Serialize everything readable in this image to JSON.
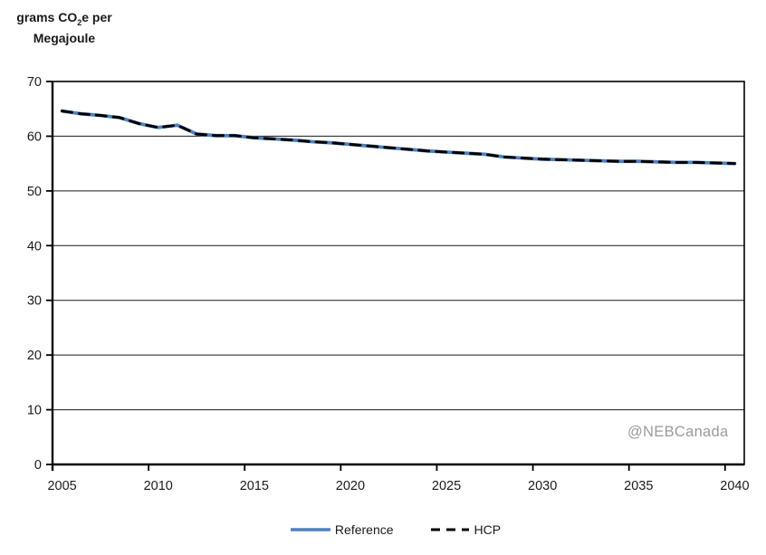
{
  "axis_title": {
    "pre": "grams CO",
    "sub": "2",
    "post": "e per",
    "line2": "Megajoule"
  },
  "watermark": "@NEBCanada",
  "legend": {
    "items": [
      {
        "label": "Reference"
      },
      {
        "label": "HCP"
      }
    ]
  },
  "chart_data": {
    "type": "line",
    "title": "",
    "ylabel": "grams CO2e per Megajoule",
    "xlabel": "",
    "ylim": [
      0,
      70
    ],
    "y_ticks": [
      0,
      10,
      20,
      30,
      40,
      50,
      60,
      70
    ],
    "x_tick_labels": [
      2005,
      2010,
      2015,
      2020,
      2025,
      2030,
      2035,
      2040
    ],
    "grid": "horizontal",
    "legend_position": "bottom",
    "annotations": [
      {
        "text": "@NEBCanada",
        "color": "#9b9b9b",
        "position": "bottom-right-inside-plot"
      }
    ],
    "x": [
      2005,
      2006,
      2007,
      2008,
      2009,
      2010,
      2011,
      2012,
      2013,
      2014,
      2015,
      2016,
      2017,
      2018,
      2019,
      2020,
      2021,
      2022,
      2023,
      2024,
      2025,
      2026,
      2027,
      2028,
      2029,
      2030,
      2031,
      2032,
      2033,
      2034,
      2035,
      2036,
      2037,
      2038,
      2039,
      2040
    ],
    "series": [
      {
        "name": "Reference",
        "color": "#4F81BD",
        "line_style": "solid",
        "values": [
          64.6,
          64.1,
          63.8,
          63.4,
          62.3,
          61.6,
          62.0,
          60.4,
          60.1,
          60.1,
          59.7,
          59.5,
          59.3,
          59.0,
          58.8,
          58.5,
          58.2,
          57.9,
          57.6,
          57.3,
          57.1,
          56.9,
          56.7,
          56.2,
          56.0,
          55.8,
          55.7,
          55.6,
          55.5,
          55.4,
          55.4,
          55.3,
          55.2,
          55.2,
          55.1,
          55.0
        ]
      },
      {
        "name": "HCP",
        "color": "#000000",
        "line_style": "dashed",
        "values": [
          64.6,
          64.1,
          63.8,
          63.4,
          62.3,
          61.6,
          62.0,
          60.4,
          60.1,
          60.1,
          59.7,
          59.5,
          59.3,
          59.0,
          58.8,
          58.5,
          58.2,
          57.9,
          57.6,
          57.3,
          57.1,
          56.9,
          56.7,
          56.2,
          56.0,
          55.8,
          55.7,
          55.6,
          55.5,
          55.4,
          55.4,
          55.3,
          55.2,
          55.2,
          55.1,
          55.0
        ]
      }
    ]
  }
}
